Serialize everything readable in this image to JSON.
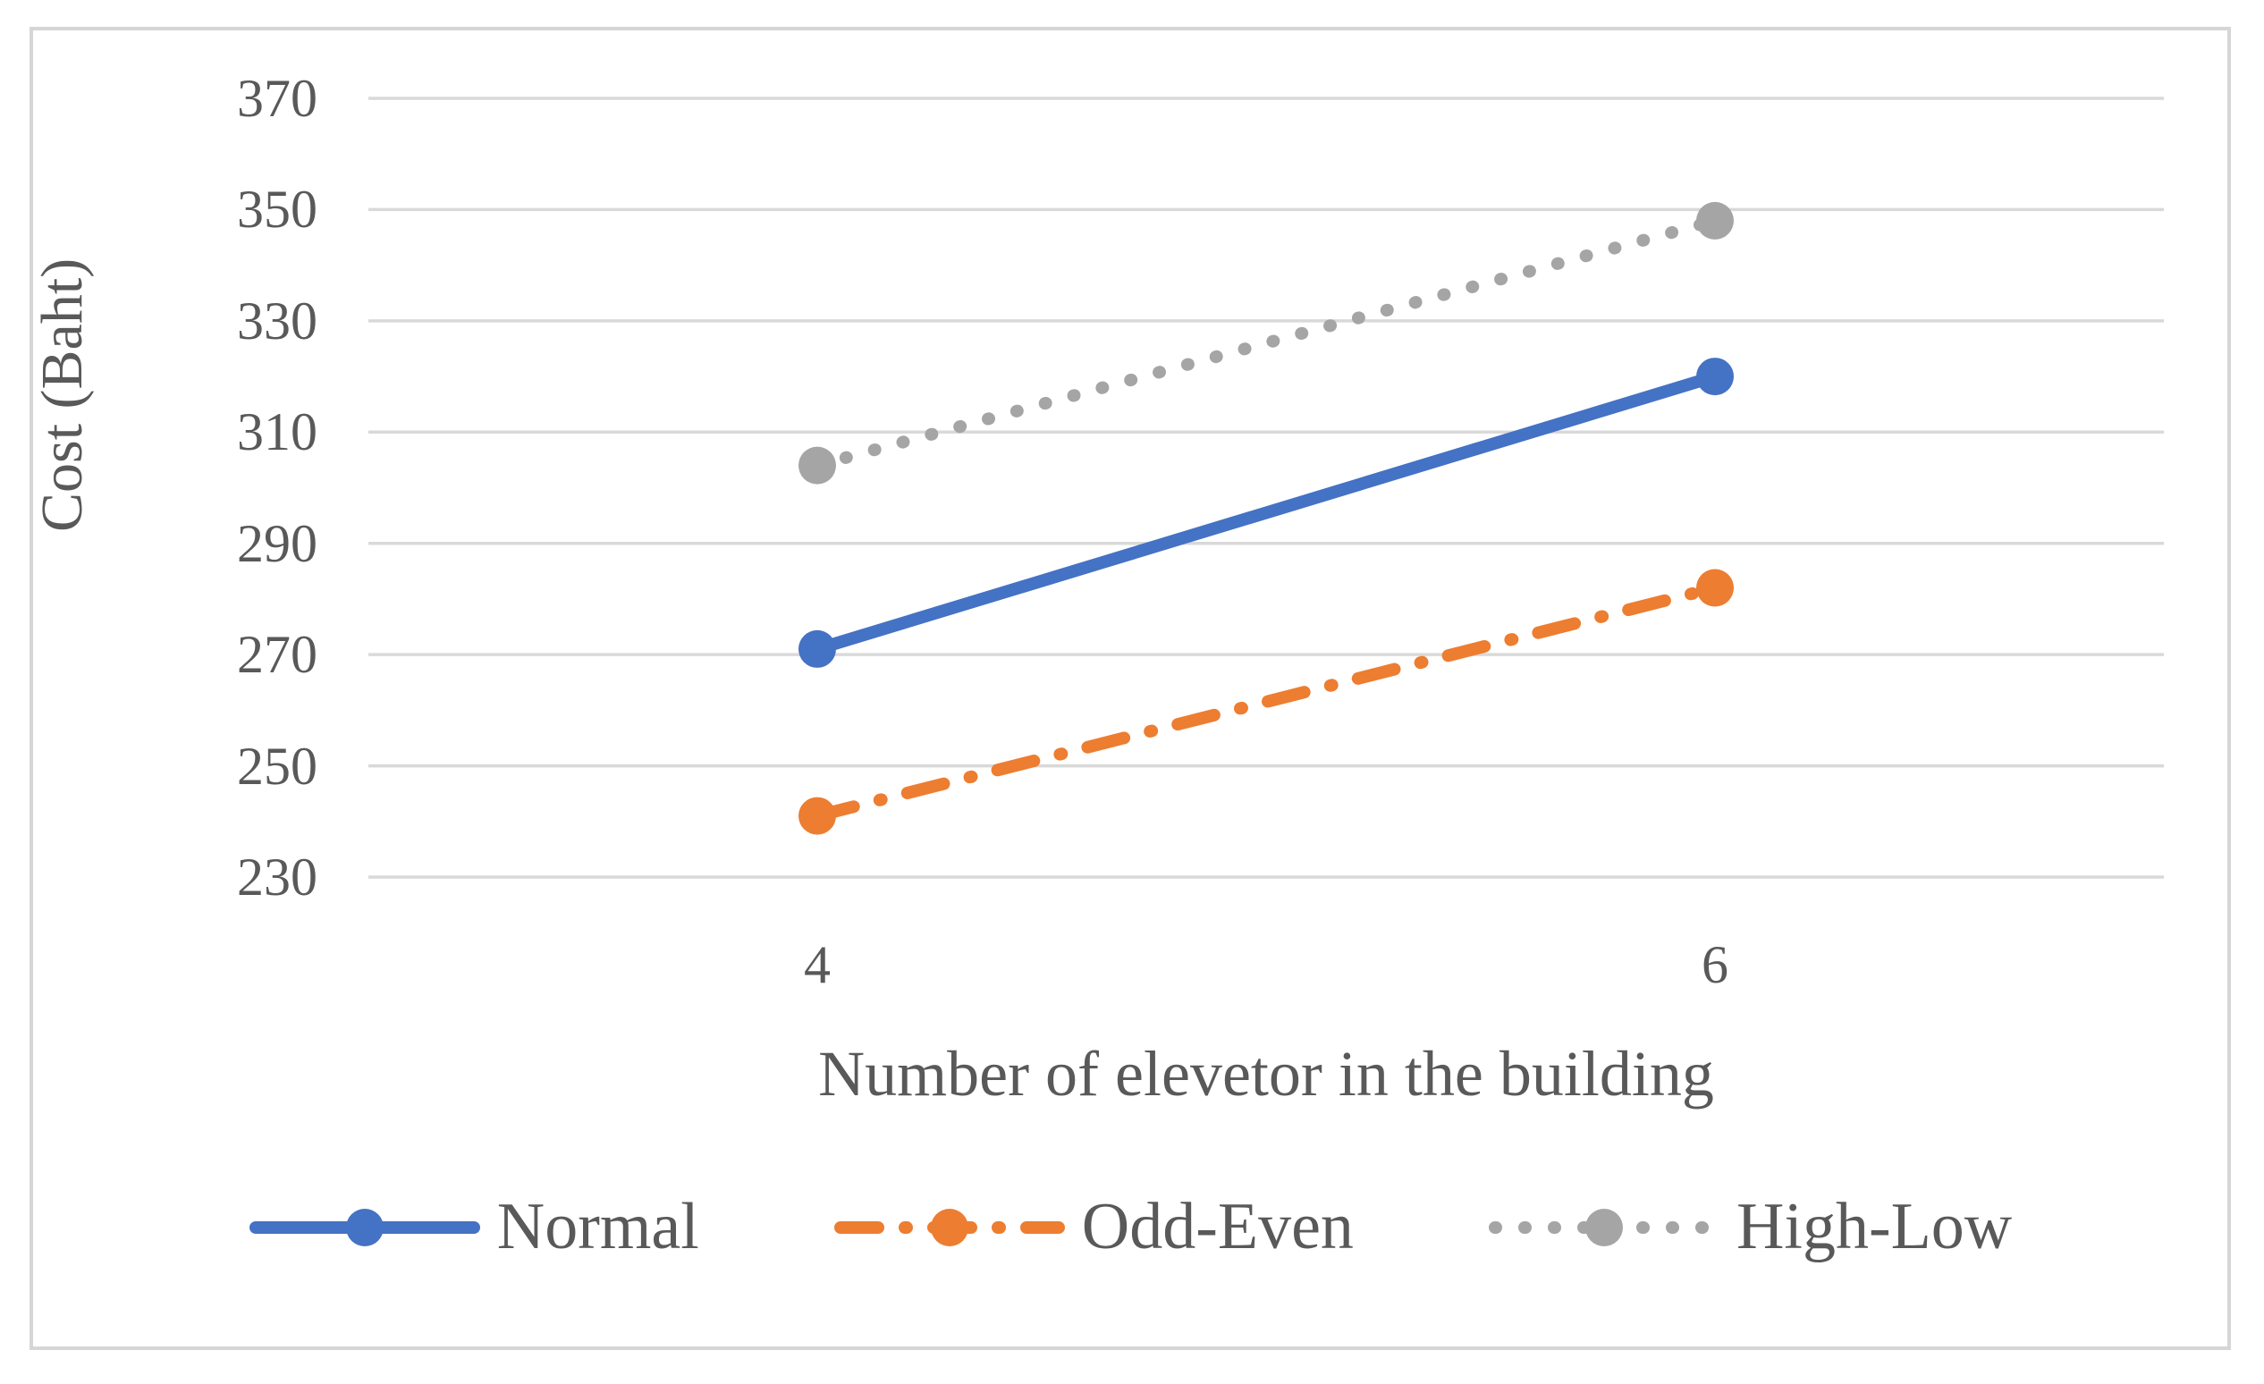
{
  "chart_data": {
    "type": "line",
    "categories": [
      "4",
      "6"
    ],
    "series": [
      {
        "name": "Normal",
        "values": [
          271,
          320
        ],
        "color": "#4472C4",
        "style": "solid"
      },
      {
        "name": "Odd-Even",
        "values": [
          241,
          282
        ],
        "color": "#ED7D31",
        "style": "dash-dot"
      },
      {
        "name": "High-Low",
        "values": [
          304,
          348
        ],
        "color": "#A5A5A5",
        "style": "dotted"
      }
    ],
    "title": "",
    "xlabel": "Number of elevetor in the building",
    "ylabel": "Cost (Baht)",
    "ylim": [
      230,
      370
    ],
    "yticks": [
      230,
      250,
      270,
      290,
      310,
      330,
      350,
      370
    ],
    "grid": true,
    "gridline_color": "#d9d9d9",
    "text_color": "#595959",
    "legend_position": "bottom"
  }
}
